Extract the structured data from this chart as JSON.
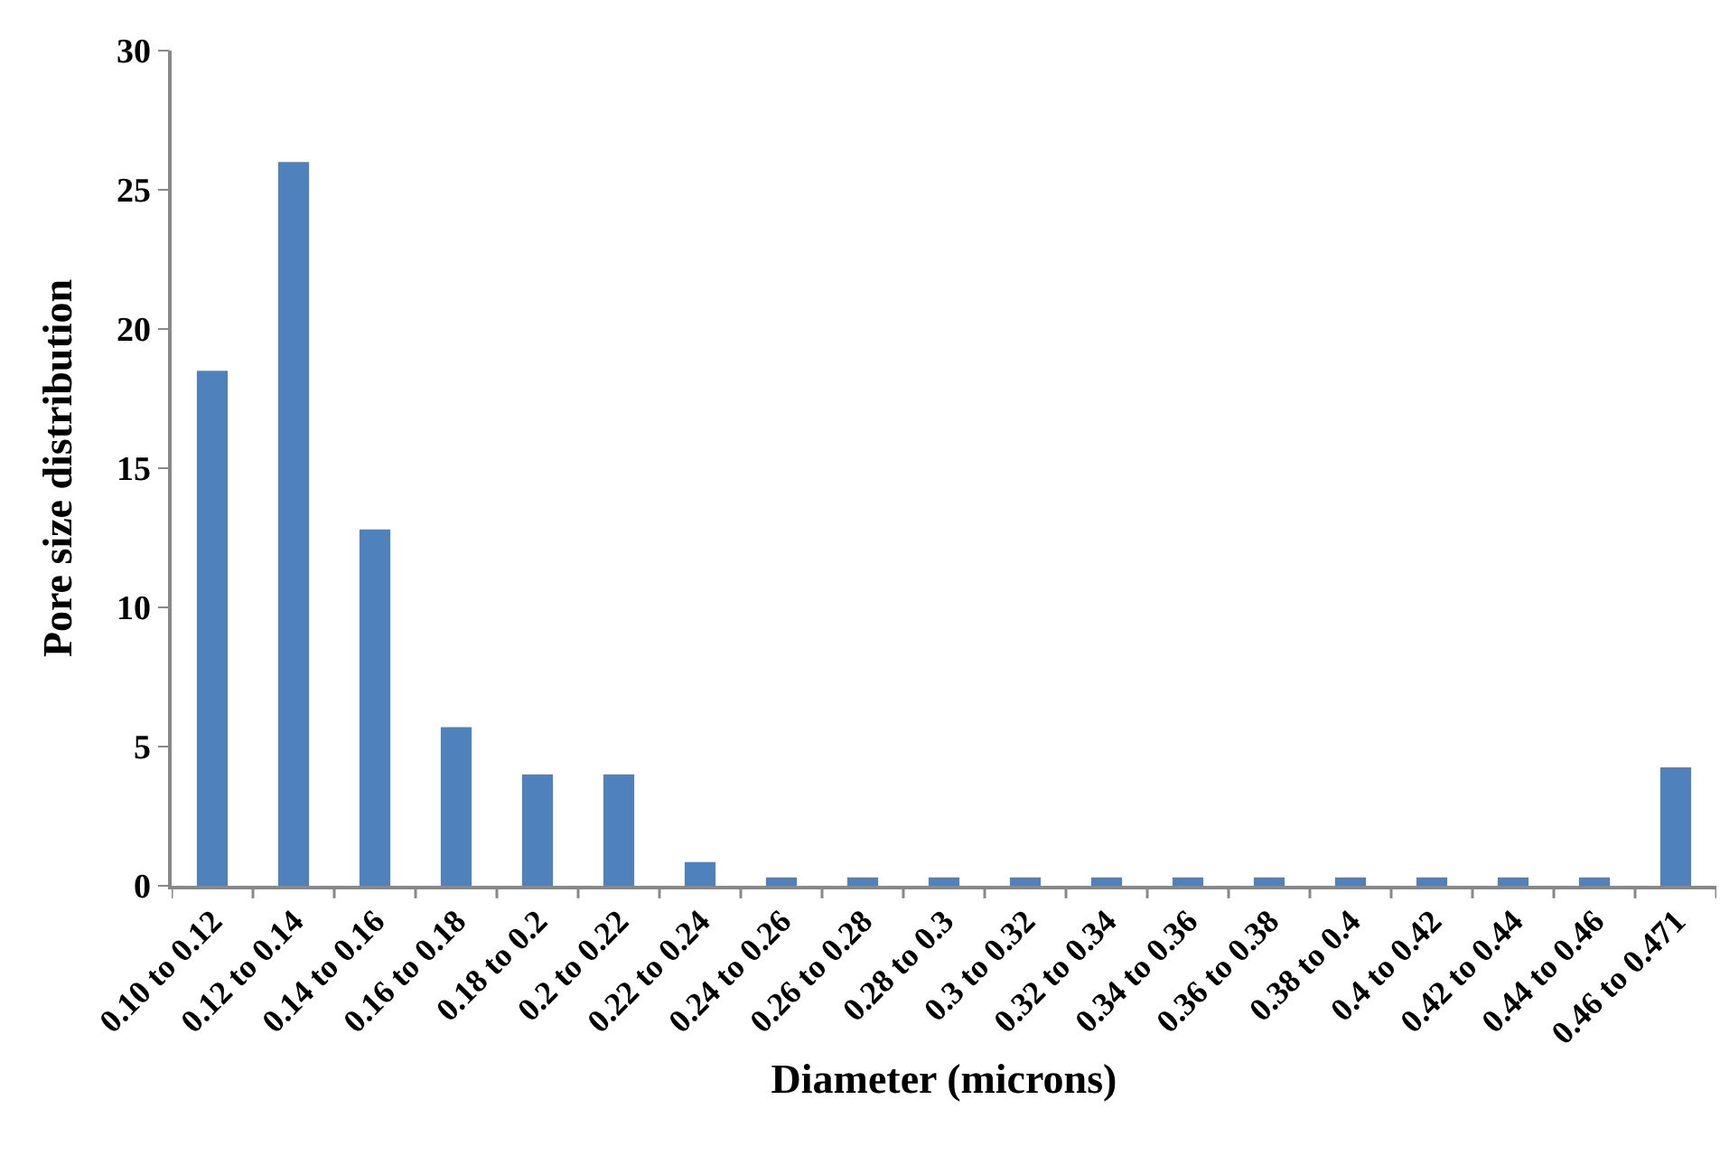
{
  "chart_data": {
    "type": "bar",
    "xlabel": "Diameter (microns)",
    "ylabel": "Pore size distribution",
    "categories": [
      "0.10 to 0.12",
      "0.12 to 0.14",
      "0.14 to 0.16",
      "0.16 to 0.18",
      "0.18 to 0.2",
      "0.2 to 0.22",
      "0.22 to 0.24",
      "0.24 to 0.26",
      "0.26 to 0.28",
      "0.28 to 0.3",
      "0.3 to 0.32",
      "0.32 to 0.34",
      "0.34 to 0.36",
      "0.36 to 0.38",
      "0.38 to 0.4",
      "0.4 to 0.42",
      "0.42 to 0.44",
      "0.44 to 0.46",
      "0.46 to 0.471"
    ],
    "values": [
      18.5,
      26,
      12.8,
      5.7,
      4,
      4,
      0.85,
      0.3,
      0.3,
      0.3,
      0.3,
      0.3,
      0.3,
      0.3,
      0.3,
      0.3,
      0.3,
      0.3,
      4.25
    ],
    "color": "#4f81bd",
    "ylim": [
      0,
      30
    ],
    "yticks": [
      0,
      5,
      10,
      15,
      20,
      25,
      30
    ],
    "grid": false
  }
}
